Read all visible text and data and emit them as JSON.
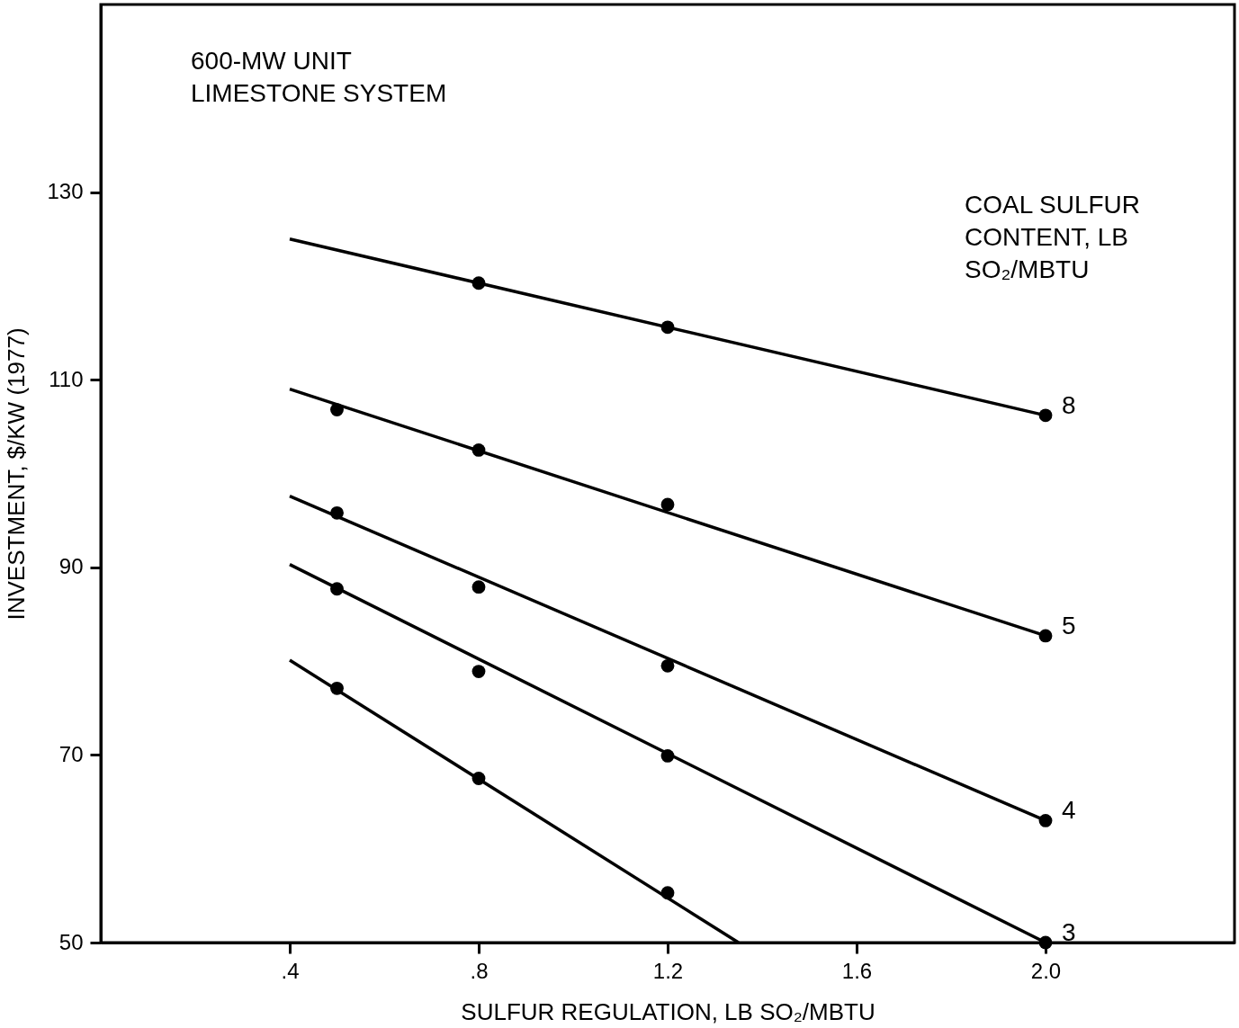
{
  "chart_data": {
    "type": "scatter",
    "xlabel": "SULFUR REGULATION, LB SO₂/MBTU",
    "ylabel": "INVESTMENT, $/KW (1977)",
    "xlim": [
      0.0,
      2.4
    ],
    "ylim": [
      50,
      150
    ],
    "xticks": [
      {
        "value": 0.4,
        "label": ".4"
      },
      {
        "value": 0.8,
        "label": ".8"
      },
      {
        "value": 1.2,
        "label": "1.2"
      },
      {
        "value": 1.6,
        "label": "1.6"
      },
      {
        "value": 2.0,
        "label": "2.0"
      }
    ],
    "yticks": [
      50,
      70,
      90,
      110,
      130
    ],
    "grid": false,
    "marker": "circle",
    "annotations": [
      "600-MW UNIT\nLIMESTONE SYSTEM",
      "COAL SULFUR\nCONTENT, LB\nSO₂/MBTU"
    ],
    "series": [
      {
        "type": "line",
        "marker": "none",
        "line_style": "solid",
        "color": "#000000",
        "x": [
          0.4,
          2.0
        ],
        "values": [
          125.0,
          106.2
        ]
      },
      {
        "name": "8",
        "color": "#000000",
        "x": [
          0.8,
          1.2,
          2.0
        ],
        "values": [
          120.3,
          115.6,
          106.2
        ]
      },
      {
        "type": "line",
        "marker": "none",
        "line_style": "solid",
        "color": "#000000",
        "x": [
          0.4,
          2.0
        ],
        "values": [
          109.0,
          82.7
        ]
      },
      {
        "name": "5",
        "color": "#000000",
        "x": [
          0.5,
          0.8,
          1.2,
          2.0
        ],
        "values": [
          106.8,
          102.5,
          96.7,
          82.7
        ]
      },
      {
        "type": "line",
        "marker": "none",
        "line_style": "solid",
        "color": "#000000",
        "x": [
          0.4,
          2.0
        ],
        "values": [
          97.6,
          63.0
        ]
      },
      {
        "name": "4",
        "color": "#000000",
        "x": [
          0.5,
          0.8,
          1.2,
          2.0
        ],
        "values": [
          95.8,
          87.9,
          79.5,
          63.0
        ]
      },
      {
        "type": "line",
        "marker": "none",
        "line_style": "solid",
        "color": "#000000",
        "x": [
          0.4,
          2.0
        ],
        "values": [
          90.3,
          50
        ]
      },
      {
        "name": "3",
        "color": "#000000",
        "x": [
          0.5,
          0.8,
          1.2,
          2.0
        ],
        "values": [
          87.7,
          78.9,
          69.9,
          50
        ]
      },
      {
        "type": "line",
        "marker": "none",
        "line_style": "solid",
        "color": "#000000",
        "x": [
          0.4,
          1.35
        ],
        "values": [
          80.1,
          50
        ]
      },
      {
        "color": "#000000",
        "x": [
          0.5,
          0.8,
          1.2
        ],
        "values": [
          77.1,
          67.5,
          55.3
        ]
      }
    ]
  }
}
